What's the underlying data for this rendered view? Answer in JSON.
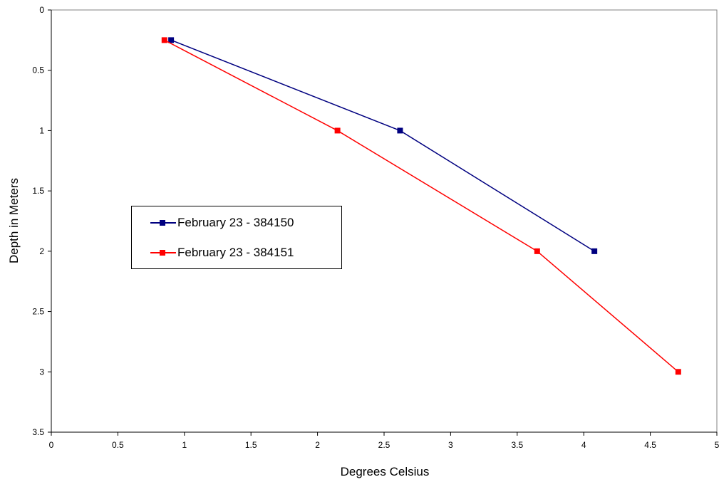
{
  "chart_data": {
    "type": "line",
    "title": "",
    "xlabel": "Degrees Celsius",
    "ylabel": "Depth in Meters",
    "xlim": [
      0,
      5
    ],
    "ylim": [
      0,
      3.5
    ],
    "y_inverted": true,
    "x_ticks": [
      "0",
      "0.5",
      "1",
      "1.5",
      "2",
      "2.5",
      "3",
      "3.5",
      "4",
      "4.5",
      "5"
    ],
    "y_ticks": [
      "0",
      "0.5",
      "1",
      "1.5",
      "2",
      "2.5",
      "3",
      "3.5"
    ],
    "grid": false,
    "legend_position": "center-left",
    "series": [
      {
        "name": "February 23 - 384150",
        "color": "#000080",
        "marker": "square",
        "points": [
          {
            "x": 0.9,
            "y": 0.25
          },
          {
            "x": 2.62,
            "y": 1.0
          },
          {
            "x": 4.08,
            "y": 2.0
          }
        ]
      },
      {
        "name": "February 23 - 384151",
        "color": "#ff0000",
        "marker": "square",
        "points": [
          {
            "x": 0.85,
            "y": 0.25
          },
          {
            "x": 2.15,
            "y": 1.0
          },
          {
            "x": 3.65,
            "y": 2.0
          },
          {
            "x": 4.71,
            "y": 3.0
          }
        ]
      }
    ]
  }
}
